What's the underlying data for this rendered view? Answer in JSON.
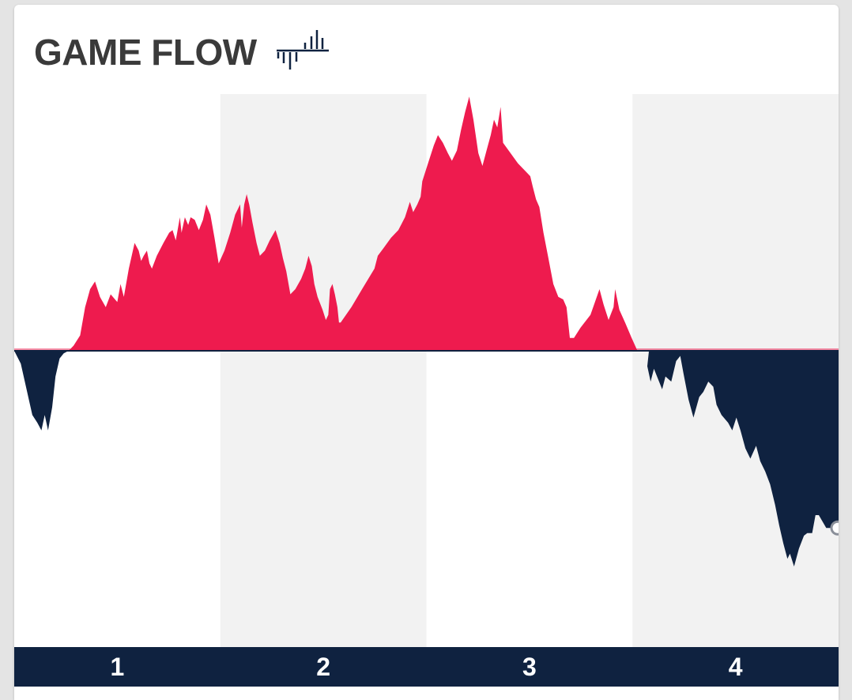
{
  "header": {
    "title": "GAME FLOW",
    "icon": "game-flow-icon"
  },
  "colors": {
    "positive": "#ee1b4e",
    "negative": "#0f2240",
    "band_light": "#ffffff",
    "band_shaded": "#f2f2f2",
    "period_bar": "#0f2240",
    "period_text": "#ffffff",
    "title": "#3a3a3a"
  },
  "chart_data": {
    "type": "area",
    "title": "GAME FLOW",
    "xlabel": "",
    "ylabel": "",
    "x_unit": "fraction of game elapsed (0 = tip-off, 1 = final)",
    "xlim": [
      0,
      1
    ],
    "ylim": [
      -1.23,
      1.0
    ],
    "y_note": "relative lead; positive = red team ahead, negative = navy team ahead; peak red lead normalized to 1",
    "grid": false,
    "legend": "none",
    "periods": [
      "1",
      "2",
      "3",
      "4"
    ],
    "series": [
      {
        "values": [
          [
            0.0,
            0.0
          ],
          [
            0.008,
            -0.05
          ],
          [
            0.015,
            -0.15
          ],
          [
            0.022,
            -0.25
          ],
          [
            0.028,
            -0.28
          ],
          [
            0.033,
            -0.31
          ],
          [
            0.037,
            -0.25
          ],
          [
            0.041,
            -0.31
          ],
          [
            0.046,
            -0.22
          ],
          [
            0.05,
            -0.1
          ],
          [
            0.055,
            -0.03
          ],
          [
            0.06,
            -0.01
          ],
          [
            0.066,
            0.0
          ],
          [
            0.072,
            0.02
          ],
          [
            0.08,
            0.06
          ],
          [
            0.086,
            0.17
          ],
          [
            0.092,
            0.24
          ],
          [
            0.098,
            0.27
          ],
          [
            0.104,
            0.21
          ],
          [
            0.111,
            0.17
          ],
          [
            0.117,
            0.22
          ],
          [
            0.125,
            0.19
          ],
          [
            0.129,
            0.26
          ],
          [
            0.133,
            0.21
          ],
          [
            0.139,
            0.32
          ],
          [
            0.146,
            0.42
          ],
          [
            0.151,
            0.39
          ],
          [
            0.154,
            0.35
          ],
          [
            0.157,
            0.37
          ],
          [
            0.161,
            0.39
          ],
          [
            0.164,
            0.34
          ],
          [
            0.167,
            0.32
          ],
          [
            0.173,
            0.37
          ],
          [
            0.181,
            0.42
          ],
          [
            0.188,
            0.46
          ],
          [
            0.192,
            0.47
          ],
          [
            0.196,
            0.43
          ],
          [
            0.201,
            0.52
          ],
          [
            0.203,
            0.46
          ],
          [
            0.207,
            0.52
          ],
          [
            0.211,
            0.49
          ],
          [
            0.214,
            0.52
          ],
          [
            0.219,
            0.51
          ],
          [
            0.224,
            0.47
          ],
          [
            0.229,
            0.51
          ],
          [
            0.233,
            0.57
          ],
          [
            0.238,
            0.53
          ],
          [
            0.243,
            0.44
          ],
          [
            0.248,
            0.34
          ],
          [
            0.255,
            0.39
          ],
          [
            0.262,
            0.46
          ],
          [
            0.268,
            0.53
          ],
          [
            0.274,
            0.57
          ],
          [
            0.276,
            0.48
          ],
          [
            0.279,
            0.57
          ],
          [
            0.282,
            0.61
          ],
          [
            0.285,
            0.57
          ],
          [
            0.289,
            0.5
          ],
          [
            0.294,
            0.42
          ],
          [
            0.298,
            0.37
          ],
          [
            0.304,
            0.39
          ],
          [
            0.31,
            0.43
          ],
          [
            0.317,
            0.47
          ],
          [
            0.322,
            0.42
          ],
          [
            0.326,
            0.36
          ],
          [
            0.33,
            0.31
          ],
          [
            0.335,
            0.22
          ],
          [
            0.341,
            0.24
          ],
          [
            0.348,
            0.28
          ],
          [
            0.353,
            0.32
          ],
          [
            0.357,
            0.37
          ],
          [
            0.361,
            0.33
          ],
          [
            0.364,
            0.26
          ],
          [
            0.368,
            0.21
          ],
          [
            0.374,
            0.16
          ],
          [
            0.378,
            0.12
          ],
          [
            0.381,
            0.14
          ],
          [
            0.383,
            0.24
          ],
          [
            0.386,
            0.26
          ],
          [
            0.389,
            0.22
          ],
          [
            0.392,
            0.17
          ],
          [
            0.394,
            0.11
          ],
          [
            0.396,
            0.11
          ],
          [
            0.409,
            0.17
          ],
          [
            0.422,
            0.24
          ],
          [
            0.437,
            0.32
          ],
          [
            0.441,
            0.37
          ],
          [
            0.448,
            0.4
          ],
          [
            0.457,
            0.44
          ],
          [
            0.466,
            0.47
          ],
          [
            0.474,
            0.52
          ],
          [
            0.48,
            0.58
          ],
          [
            0.484,
            0.54
          ],
          [
            0.489,
            0.57
          ],
          [
            0.493,
            0.6
          ],
          [
            0.495,
            0.66
          ],
          [
            0.498,
            0.69
          ],
          [
            0.503,
            0.74
          ],
          [
            0.509,
            0.8
          ],
          [
            0.514,
            0.84
          ],
          [
            0.52,
            0.81
          ],
          [
            0.526,
            0.77
          ],
          [
            0.531,
            0.74
          ],
          [
            0.537,
            0.78
          ],
          [
            0.542,
            0.86
          ],
          [
            0.547,
            0.93
          ],
          [
            0.552,
            0.99
          ],
          [
            0.557,
            0.9
          ],
          [
            0.563,
            0.77
          ],
          [
            0.568,
            0.72
          ],
          [
            0.573,
            0.78
          ],
          [
            0.578,
            0.84
          ],
          [
            0.582,
            0.9
          ],
          [
            0.586,
            0.87
          ],
          [
            0.59,
            0.95
          ],
          [
            0.593,
            0.81
          ],
          [
            0.602,
            0.77
          ],
          [
            0.611,
            0.73
          ],
          [
            0.62,
            0.7
          ],
          [
            0.626,
            0.68
          ],
          [
            0.629,
            0.64
          ],
          [
            0.633,
            0.59
          ],
          [
            0.637,
            0.56
          ],
          [
            0.642,
            0.46
          ],
          [
            0.648,
            0.36
          ],
          [
            0.654,
            0.26
          ],
          [
            0.66,
            0.21
          ],
          [
            0.666,
            0.2
          ],
          [
            0.67,
            0.17
          ],
          [
            0.674,
            0.05
          ],
          [
            0.679,
            0.05
          ],
          [
            0.687,
            0.09
          ],
          [
            0.699,
            0.14
          ],
          [
            0.71,
            0.24
          ],
          [
            0.715,
            0.18
          ],
          [
            0.721,
            0.12
          ],
          [
            0.727,
            0.17
          ],
          [
            0.729,
            0.24
          ],
          [
            0.734,
            0.16
          ],
          [
            0.741,
            0.11
          ],
          [
            0.749,
            0.05
          ],
          [
            0.756,
            0.0
          ],
          [
            0.77,
            0.0
          ],
          [
            0.768,
            -0.06
          ],
          [
            0.772,
            -0.12
          ],
          [
            0.776,
            -0.07
          ],
          [
            0.781,
            -0.11
          ],
          [
            0.786,
            -0.15
          ],
          [
            0.79,
            -0.1
          ],
          [
            0.797,
            -0.12
          ],
          [
            0.803,
            -0.04
          ],
          [
            0.808,
            -0.02
          ],
          [
            0.812,
            -0.09
          ],
          [
            0.818,
            -0.19
          ],
          [
            0.824,
            -0.26
          ],
          [
            0.831,
            -0.18
          ],
          [
            0.836,
            -0.16
          ],
          [
            0.842,
            -0.12
          ],
          [
            0.848,
            -0.14
          ],
          [
            0.852,
            -0.21
          ],
          [
            0.858,
            -0.25
          ],
          [
            0.866,
            -0.28
          ],
          [
            0.871,
            -0.31
          ],
          [
            0.876,
            -0.26
          ],
          [
            0.881,
            -0.31
          ],
          [
            0.887,
            -0.38
          ],
          [
            0.893,
            -0.42
          ],
          [
            0.9,
            -0.37
          ],
          [
            0.905,
            -0.43
          ],
          [
            0.911,
            -0.47
          ],
          [
            0.917,
            -0.52
          ],
          [
            0.923,
            -0.6
          ],
          [
            0.928,
            -0.68
          ],
          [
            0.933,
            -0.75
          ],
          [
            0.938,
            -0.81
          ],
          [
            0.941,
            -0.79
          ],
          [
            0.946,
            -0.84
          ],
          [
            0.952,
            -0.77
          ],
          [
            0.958,
            -0.72
          ],
          [
            0.962,
            -0.71
          ],
          [
            0.968,
            -0.71
          ],
          [
            0.972,
            -0.64
          ],
          [
            0.976,
            -0.64
          ],
          [
            0.985,
            -0.69
          ],
          [
            0.99,
            -0.69
          ],
          [
            1.0,
            -0.69
          ]
        ]
      }
    ]
  }
}
